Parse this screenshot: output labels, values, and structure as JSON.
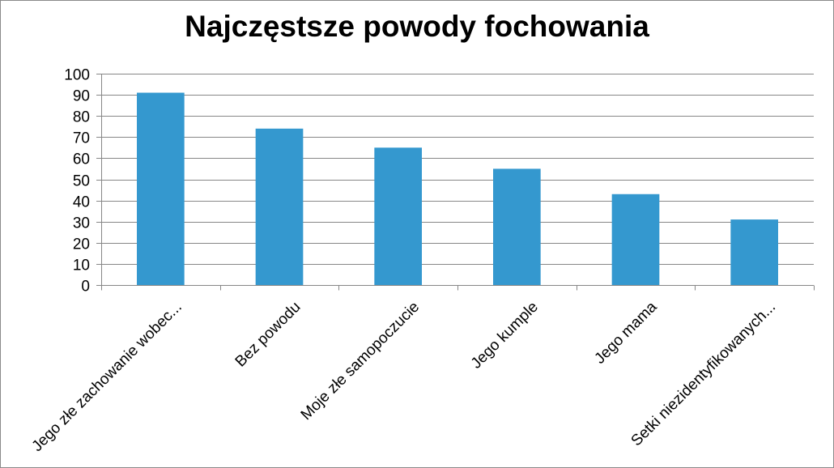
{
  "chart_data": {
    "type": "bar",
    "title": "Najczęstsze powody fochowania",
    "categories": [
      "Jego złe zachowanie wobec...",
      "Bez powodu",
      "Moje złe samopoczucie",
      "Jego kumple",
      "Jego mama",
      "Setki niezidentyfikowanych..."
    ],
    "values": [
      91,
      74,
      65,
      55,
      43,
      31
    ],
    "ylim": [
      0,
      100
    ],
    "yticks": [
      "0",
      "10",
      "20",
      "30",
      "40",
      "50",
      "60",
      "70",
      "80",
      "90",
      "100"
    ],
    "xlabel": "",
    "ylabel": "",
    "grid": true,
    "legend": "none",
    "bar_color": "#3498cf"
  }
}
